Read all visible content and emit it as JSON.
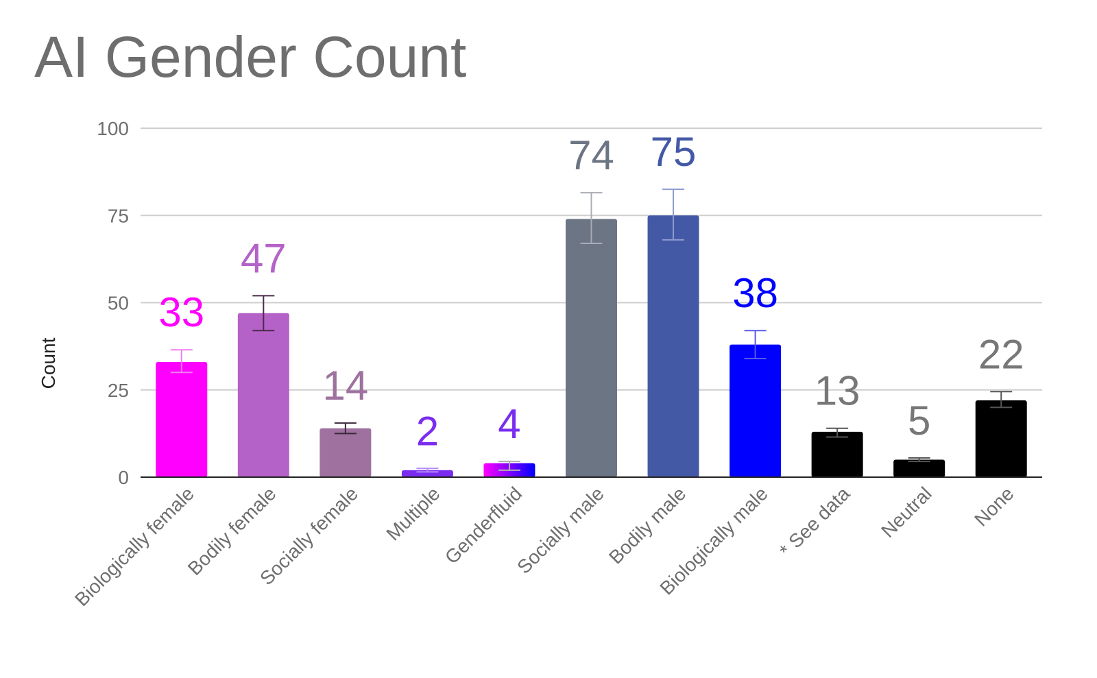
{
  "chart_data": {
    "type": "bar",
    "title": "AI Gender Count",
    "xlabel": "",
    "ylabel": "Count",
    "ylim": [
      0,
      100
    ],
    "yticks": [
      0,
      25,
      50,
      75,
      100
    ],
    "grid": true,
    "legend": "none",
    "categories": [
      "Biologically female",
      "Bodily female",
      "Socially female",
      "Multiple",
      "Genderfluid",
      "Socially male",
      "Bodily male",
      "Biologically male",
      "* See data",
      "Neutral",
      "None"
    ],
    "values": [
      33,
      47,
      14,
      2,
      4,
      74,
      75,
      38,
      13,
      5,
      22
    ],
    "data_labels": [
      "33",
      "47",
      "14",
      "2",
      "4",
      "74",
      "75",
      "38",
      "13",
      "5",
      "22"
    ],
    "error_low": [
      30,
      42,
      12.5,
      1.5,
      2,
      67,
      68,
      34,
      11.5,
      4.5,
      20
    ],
    "error_high": [
      36.5,
      52,
      15.5,
      2.5,
      4.5,
      81.5,
      82.5,
      42,
      14,
      5.5,
      24.5
    ],
    "bar_colors": [
      "#ff00ff",
      "#b462c8",
      "#9e719e",
      "#7a2cf0",
      "#ff00ff",
      "#6c7583",
      "#4459a6",
      "#0000ff",
      "#000000",
      "#000000",
      "#000000"
    ],
    "bar_gradient_end": [
      null,
      null,
      null,
      null,
      "#0000ff",
      null,
      null,
      null,
      null,
      null,
      null
    ],
    "label_colors": [
      "#ff00ff",
      "#b462c8",
      "#9e719e",
      "#7a2cf0",
      "#7a2cf0",
      "#6c7583",
      "#4459a6",
      "#0000ff",
      "#777777",
      "#777777",
      "#777777"
    ],
    "error_colors": [
      "#f07ff0",
      "#4a2a4a",
      "#3a283a",
      "#b38cf5",
      "#b0b0b0",
      "#a8acb4",
      "#8e9bd0",
      "#5a5ae8",
      "#555555",
      "#555555",
      "#555555"
    ]
  }
}
